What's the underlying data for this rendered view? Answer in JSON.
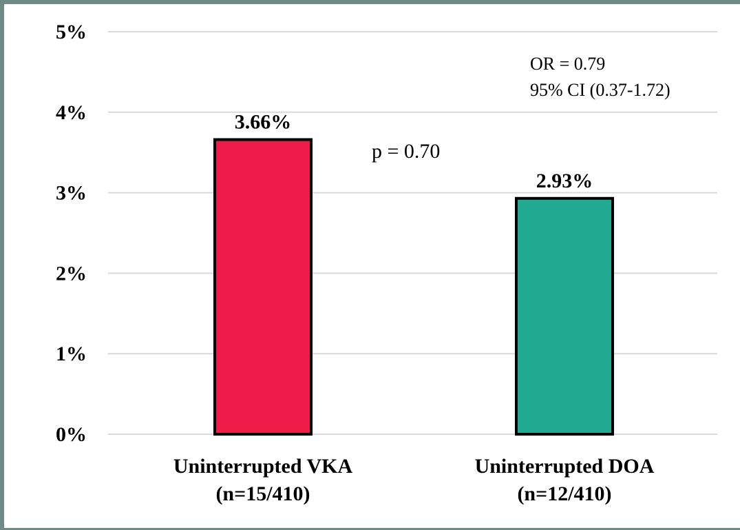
{
  "chart_data": {
    "type": "bar",
    "categories": [
      "Uninterrupted VKA\n(n=15/410)",
      "Uninterrupted DOA\n(n=12/410)"
    ],
    "category_lines": [
      [
        "Uninterrupted VKA",
        "(n=15/410)"
      ],
      [
        "Uninterrupted DOA",
        "(n=12/410)"
      ]
    ],
    "values": [
      3.66,
      2.93
    ],
    "value_labels": [
      "3.66%",
      "2.93%"
    ],
    "colors": [
      "#ee1c48",
      "#22aa92"
    ],
    "ylim": [
      0,
      5
    ],
    "yticks": [
      0,
      1,
      2,
      3,
      4,
      5
    ],
    "ytick_labels": [
      "0%",
      "1%",
      "2%",
      "3%",
      "4%",
      "5%"
    ],
    "grid": true,
    "title": "",
    "xlabel": "",
    "ylabel": "",
    "annotations": {
      "p_value": "p = 0.70",
      "or": "OR = 0.79",
      "ci": "95% CI (0.37-1.72)"
    }
  }
}
